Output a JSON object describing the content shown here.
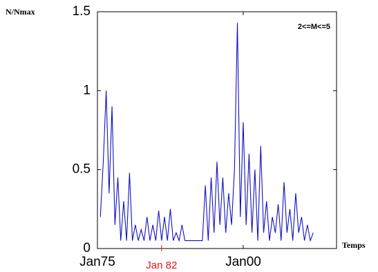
{
  "chart_data": {
    "type": "line",
    "y_label": "N/Nmax",
    "x_label": "Temps",
    "legend_text": "2<=M<=5",
    "annotation": {
      "text": "Jan 82",
      "x": 1986,
      "color": "#e8101a"
    },
    "x": [
      1975.5,
      1976,
      1976.5,
      1977,
      1977.5,
      1978,
      1978.5,
      1979,
      1979.5,
      1980,
      1980.5,
      1981,
      1981.5,
      1982,
      1982.5,
      1983,
      1983.5,
      1984,
      1984.5,
      1985,
      1985.5,
      1986,
      1986.5,
      1987,
      1987.5,
      1988,
      1988.5,
      1989,
      1989.5,
      1990,
      1990.5,
      1991,
      1991.5,
      1992,
      1992.5,
      1993,
      1993.5,
      1994,
      1994.5,
      1995,
      1995.5,
      1996,
      1996.5,
      1997,
      1997.5,
      1998,
      1998.5,
      1999,
      1999.5,
      2000,
      2000.5,
      2001,
      2001.5,
      2002,
      2002.5,
      2003,
      2003.5,
      2004,
      2004.5,
      2005,
      2005.5,
      2006,
      2006.5,
      2007,
      2007.5,
      2008,
      2008.5,
      2009,
      2009.5,
      2010,
      2010.5,
      2011,
      2011.5,
      2012
    ],
    "series": [
      {
        "name": "N/Nmax",
        "color": "#1010c0",
        "values": [
          0.2,
          0.55,
          1.0,
          0.35,
          0.9,
          0.15,
          0.45,
          0.05,
          0.3,
          0.05,
          0.48,
          0.05,
          0.15,
          0.05,
          0.12,
          0.05,
          0.2,
          0.05,
          0.15,
          0.05,
          0.24,
          0.05,
          0.2,
          0.05,
          0.25,
          0.05,
          0.1,
          0.05,
          0.15,
          0.05,
          0.05,
          0.05,
          0.05,
          0.05,
          0.05,
          0.05,
          0.4,
          0.05,
          0.45,
          0.1,
          0.55,
          0.15,
          0.45,
          0.1,
          0.35,
          0.15,
          0.5,
          1.43,
          0.2,
          0.8,
          0.15,
          0.6,
          0.1,
          0.5,
          0.05,
          0.65,
          0.1,
          0.3,
          0.05,
          0.2,
          0.1,
          0.28,
          0.05,
          0.42,
          0.1,
          0.25,
          0.05,
          0.35,
          0.1,
          0.2,
          0.05,
          0.15,
          0.05,
          0.1
        ]
      }
    ],
    "xlim": [
      1975,
      2016
    ],
    "xticks": [
      {
        "value": 1975,
        "label": "Jan75"
      },
      {
        "value": 2000,
        "label": "Jan00"
      }
    ],
    "ylim": [
      0,
      1.5
    ],
    "yticks": [
      0,
      0.5,
      1,
      1.5
    ],
    "grid": false
  }
}
